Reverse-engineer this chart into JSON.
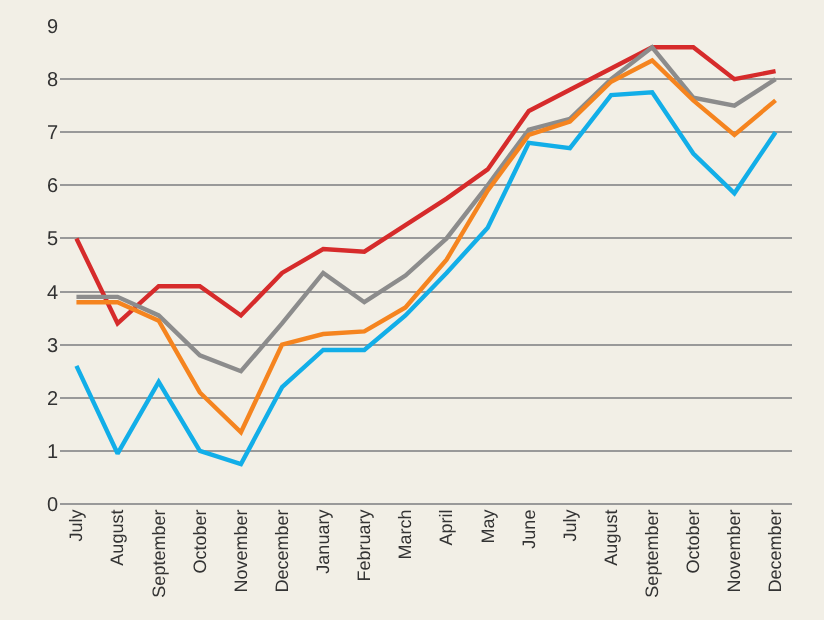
{
  "chart_data": {
    "type": "line",
    "categories": [
      "July",
      "August",
      "September",
      "October",
      "November",
      "December",
      "January",
      "February",
      "March",
      "April",
      "May",
      "June",
      "July",
      "August",
      "September",
      "October",
      "November",
      "December"
    ],
    "series": [
      {
        "color": "#d62b2b",
        "values": [
          5.0,
          3.4,
          4.1,
          4.1,
          3.55,
          4.35,
          4.8,
          4.75,
          5.25,
          5.75,
          6.3,
          7.4,
          7.8,
          8.2,
          8.6,
          8.6,
          8.0,
          8.15
        ]
      },
      {
        "color": "#8c8c8c",
        "values": [
          3.9,
          3.9,
          3.55,
          2.8,
          2.5,
          3.4,
          4.35,
          3.8,
          4.3,
          5.0,
          6.0,
          7.05,
          7.25,
          8.0,
          8.6,
          7.65,
          7.5,
          8.0
        ]
      },
      {
        "color": "#f5841f",
        "values": [
          3.8,
          3.8,
          3.45,
          2.1,
          1.35,
          3.0,
          3.2,
          3.25,
          3.7,
          4.6,
          5.9,
          6.95,
          7.2,
          7.95,
          8.35,
          7.6,
          6.95,
          7.6
        ]
      },
      {
        "color": "#12aee8",
        "values": [
          2.6,
          0.95,
          2.3,
          1.0,
          0.75,
          2.2,
          2.9,
          2.9,
          3.55,
          4.35,
          5.2,
          6.8,
          6.7,
          7.7,
          7.75,
          6.6,
          5.85,
          7.0
        ]
      }
    ],
    "ylim": [
      0,
      9
    ],
    "yticks": [
      0,
      1,
      2,
      3,
      4,
      5,
      6,
      7,
      8,
      9
    ],
    "grid": "y",
    "marker": "none",
    "line_style": "solid"
  }
}
